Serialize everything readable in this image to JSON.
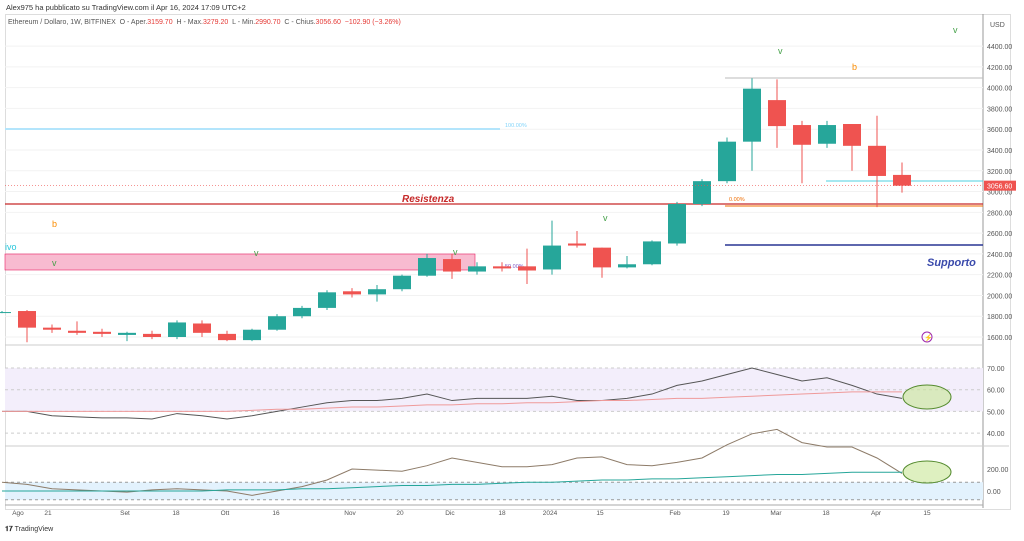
{
  "header": {
    "published": "Alex975 ha pubblicato su TradingView.com il Apr 16, 2024 17:09 UTC+2",
    "symbol": "Ethereum / Dollaro, 1W, BITFINEX",
    "o_label": "O - Aper.",
    "o": "3159.70",
    "h_label": "H - Max.",
    "h": "3279.20",
    "l_label": "L - Min.",
    "l": "2990.70",
    "c_label": "C - Chius.",
    "c": "3056.60",
    "change": "−102.90 (−3.26%)"
  },
  "footer": {
    "brand": "TradingView"
  },
  "colors": {
    "up": "#26a69a",
    "down": "#ef5350",
    "resistance": "#c62828",
    "support": "#283593"
  },
  "annotations": {
    "resistance": "Resistenza",
    "support": "Supporto",
    "fib100": "100.00%",
    "fib50": "50.00%",
    "fib0": "0.00%",
    "partial": "ivo",
    "v": "v",
    "b": "b"
  },
  "chart_data": {
    "type": "candlestick",
    "currency": "USD",
    "ylim": [
      1500,
      4600
    ],
    "price_ticks": [
      "4400.00",
      "4200.00",
      "4000.00",
      "3800.00",
      "3600.00",
      "3400.00",
      "3200.00",
      "3000.00",
      "2800.00",
      "2600.00",
      "2400.00",
      "2200.00",
      "2000.00",
      "1800.00",
      "1600.00"
    ],
    "last_price": "3056.60",
    "x_ticks": [
      "Ago",
      "21",
      "Set",
      "18",
      "Ott",
      "16",
      "Nov",
      "20",
      "Dic",
      "18",
      "2024",
      "15",
      "Feb",
      "19",
      "Mar",
      "18",
      "Apr",
      "15"
    ],
    "candles": [
      [
        1840,
        1850,
        1830,
        1840
      ],
      [
        1850,
        1860,
        1550,
        1690
      ],
      [
        1690,
        1720,
        1640,
        1670
      ],
      [
        1660,
        1750,
        1620,
        1640
      ],
      [
        1650,
        1680,
        1600,
        1630
      ],
      [
        1620,
        1650,
        1560,
        1640
      ],
      [
        1630,
        1660,
        1580,
        1600
      ],
      [
        1600,
        1760,
        1580,
        1740
      ],
      [
        1730,
        1760,
        1600,
        1640
      ],
      [
        1630,
        1660,
        1560,
        1570
      ],
      [
        1570,
        1680,
        1560,
        1670
      ],
      [
        1670,
        1820,
        1660,
        1800
      ],
      [
        1800,
        1900,
        1780,
        1880
      ],
      [
        1880,
        2050,
        1860,
        2030
      ],
      [
        2040,
        2070,
        1980,
        2010
      ],
      [
        2010,
        2100,
        1940,
        2060
      ],
      [
        2060,
        2200,
        2040,
        2190
      ],
      [
        2190,
        2400,
        2180,
        2360
      ],
      [
        2350,
        2400,
        2160,
        2230
      ],
      [
        2230,
        2320,
        2200,
        2280
      ],
      [
        2280,
        2320,
        2230,
        2260
      ],
      [
        2280,
        2450,
        2110,
        2240
      ],
      [
        2250,
        2720,
        2200,
        2480
      ],
      [
        2500,
        2620,
        2460,
        2480
      ],
      [
        2460,
        2460,
        2170,
        2270
      ],
      [
        2270,
        2380,
        2260,
        2300
      ],
      [
        2300,
        2530,
        2290,
        2520
      ],
      [
        2500,
        2900,
        2480,
        2880
      ],
      [
        2880,
        3120,
        2860,
        3100
      ],
      [
        3100,
        3520,
        3080,
        3480
      ],
      [
        3480,
        4090,
        3200,
        3990
      ],
      [
        3880,
        4080,
        3420,
        3630
      ],
      [
        3640,
        3680,
        3080,
        3450
      ],
      [
        3460,
        3680,
        3420,
        3640
      ],
      [
        3650,
        3650,
        3200,
        3440
      ],
      [
        3440,
        3730,
        2850,
        3150
      ],
      [
        3160,
        3280,
        2990,
        3056.6
      ]
    ],
    "rsi": {
      "ticks": [
        "70.00",
        "60.00",
        "50.00",
        "40.00"
      ],
      "values": [
        50,
        50,
        48,
        47.5,
        47,
        47,
        46.5,
        49,
        48,
        46.5,
        48,
        50,
        52,
        54,
        55,
        55,
        56,
        58,
        55,
        56,
        56,
        56,
        57,
        55,
        55,
        56,
        58,
        62,
        64,
        67,
        70,
        67,
        64,
        65.5,
        62,
        58,
        56
      ],
      "ma": [
        50,
        50,
        50,
        50,
        50,
        50,
        50,
        50,
        50,
        50,
        50.5,
        51,
        51,
        51.5,
        52,
        52,
        52.5,
        53,
        53,
        53.5,
        53.5,
        54,
        54,
        54.5,
        55,
        55,
        55.5,
        56,
        56,
        56.5,
        57,
        57.5,
        58,
        58.5,
        59,
        59,
        59
      ]
    },
    "osc": {
      "ticks": [
        "200.00",
        "0.00"
      ],
      "values": [
        80,
        60,
        20,
        10,
        0,
        -10,
        10,
        20,
        10,
        0,
        -40,
        0,
        40,
        100,
        200,
        190,
        180,
        230,
        300,
        260,
        220,
        220,
        240,
        300,
        310,
        240,
        230,
        260,
        300,
        420,
        520,
        560,
        440,
        400,
        400,
        300,
        160
      ],
      "ma": [
        0,
        0,
        0,
        0,
        0,
        0,
        0,
        0,
        0,
        10,
        10,
        10,
        20,
        20,
        30,
        40,
        50,
        50,
        60,
        60,
        70,
        80,
        80,
        90,
        100,
        100,
        110,
        110,
        120,
        130,
        140,
        150,
        150,
        160,
        170,
        170,
        170
      ]
    }
  }
}
